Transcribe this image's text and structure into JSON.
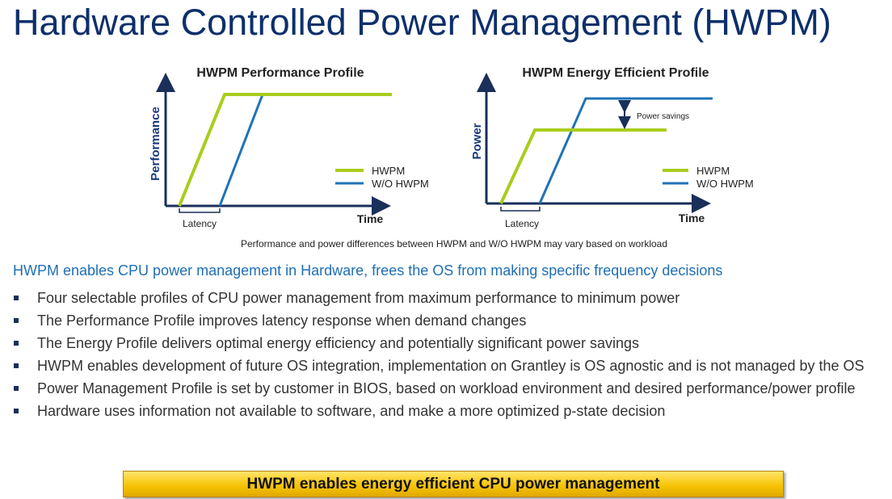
{
  "title": "Hardware Controlled Power Management (HWPM)",
  "diagrams": [
    {
      "title": "HWPM Performance Profile",
      "y_label": "Performance",
      "x_label": "Time",
      "latency_label": "Latency",
      "legend": [
        "HWPM",
        "W/O HWPM"
      ]
    },
    {
      "title": "HWPM Energy Efficient Profile",
      "y_label": "Power",
      "x_label": "Time",
      "latency_label": "Latency",
      "legend": [
        "HWPM",
        "W/O HWPM"
      ],
      "annotation": "Power savings"
    }
  ],
  "note": "Performance and power differences between HWPM and W/O HWPM may vary based on workload",
  "subtitle": "HWPM enables CPU power management in Hardware, frees the OS from making specific frequency decisions",
  "bullets": [
    "Four selectable profiles of CPU power management from maximum performance to minimum power",
    "The Performance Profile improves latency response when demand changes",
    "The Energy Profile delivers optimal energy efficiency and potentially significant power savings",
    "HWPM enables development of future OS integration, implementation on Grantley is OS agnostic and is not managed by the OS",
    "Power Management Profile is set by customer in BIOS, based on workload environment and desired performance/power profile",
    "Hardware uses information not available to software, and make a more optimized p-state decision"
  ],
  "banner": "HWPM enables energy efficient CPU power management"
}
